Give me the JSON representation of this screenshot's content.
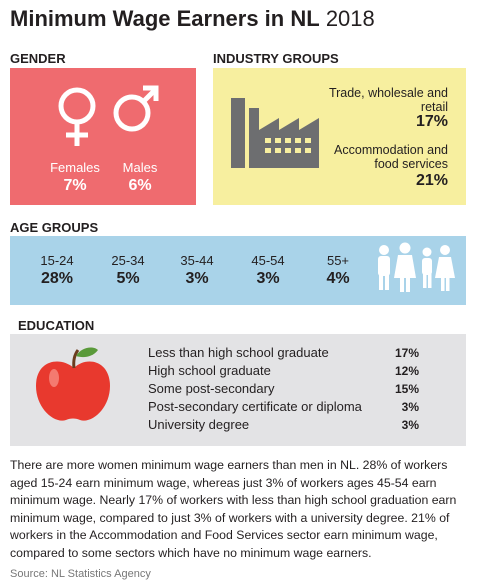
{
  "header": {
    "title": "Minimum Wage Earners in NL",
    "year": "2018"
  },
  "gender": {
    "heading": "GENDER",
    "items": [
      {
        "label": "Females",
        "value": "7%"
      },
      {
        "label": "Males",
        "value": "6%"
      }
    ]
  },
  "industry": {
    "heading": "INDUSTRY GROUPS",
    "items": [
      {
        "label": "Trade, wholesale and retail",
        "value": "17%"
      },
      {
        "label": "Accommodation and food services",
        "value": "21%"
      }
    ]
  },
  "age": {
    "heading": "AGE GROUPS",
    "items": [
      {
        "label": "15-24",
        "value": "28%"
      },
      {
        "label": "25-34",
        "value": "5%"
      },
      {
        "label": "35-44",
        "value": "3%"
      },
      {
        "label": "45-54",
        "value": "3%"
      },
      {
        "label": "55+",
        "value": "4%"
      }
    ]
  },
  "education": {
    "heading": "EDUCATION",
    "items": [
      {
        "label": "Less than high school graduate",
        "value": "17%"
      },
      {
        "label": "High school graduate",
        "value": "12%"
      },
      {
        "label": "Some post-secondary",
        "value": "15%"
      },
      {
        "label": "Post-secondary certificate or diploma",
        "value": "3%"
      },
      {
        "label": "University degree",
        "value": "3%"
      }
    ]
  },
  "summary": "There are more women minimum wage earners than men in NL. 28% of workers aged 15-24 earn minimum wage, whereas just 3% of workers ages 45-54 earn minimum wage. Nearly 17% of workers with less than high school graduation earn minimum wage, compared to just 3% of workers with a university degree. 21% of workers in the Accommodation and Food Services sector earn minimum wage, compared to some sectors which have no minimum wage earners.",
  "source": "Source: NL Statistics Agency"
}
